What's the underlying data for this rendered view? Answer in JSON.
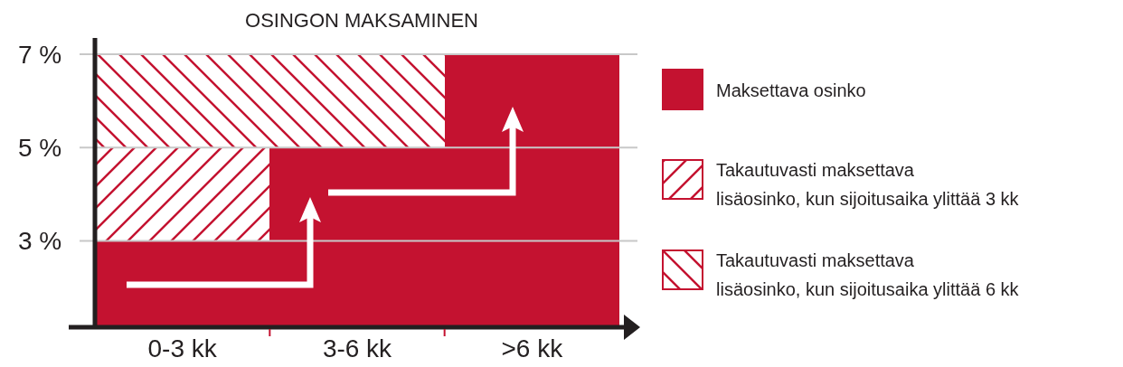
{
  "chart_data": {
    "type": "bar",
    "title": "OSINGON MAKSAMINEN",
    "categories": [
      "0-3 kk",
      "3-6 kk",
      ">6 kk"
    ],
    "stacked": true,
    "series": [
      {
        "name": "Maksettava osinko",
        "color": "#c41230",
        "values": [
          3,
          5,
          7
        ]
      },
      {
        "name": "Takautuvasti maksettava lisäosinko, kun sijoitusaika ylittää 3 kk",
        "color": "#c41230",
        "values": [
          2,
          null,
          null
        ]
      },
      {
        "name": "Takautuvasti maksettava lisäosinko, kun sijoitusaika ylittää 6 kk",
        "color": "#c41230",
        "values": [
          2,
          2,
          null
        ]
      }
    ],
    "ylim": [
      1.15,
      7.35
    ],
    "yticks": [
      {
        "value": 3,
        "label": "3 %"
      },
      {
        "value": 5,
        "label": "5 %"
      },
      {
        "value": 7,
        "label": "7 %"
      }
    ],
    "grid": "y",
    "legend": "right"
  }
}
